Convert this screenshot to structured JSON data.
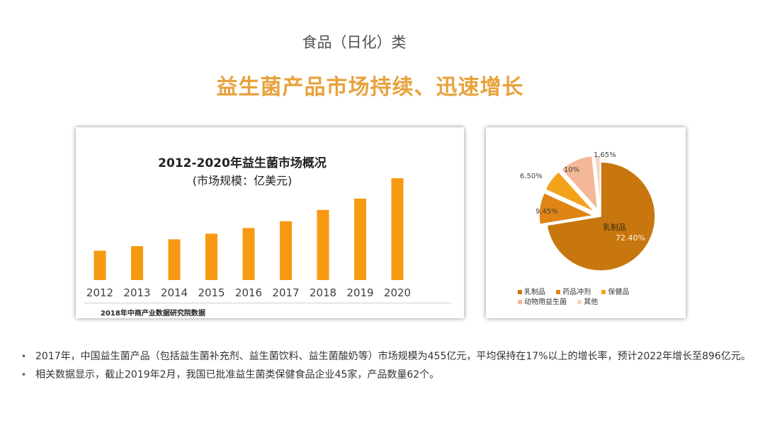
{
  "header": {
    "category": "食品（日化）类",
    "headline": "益生菌产品市场持续、迅速增长"
  },
  "colors": {
    "accent": "#E8A23C",
    "bar": "#F79A12",
    "pie": [
      "#C8770F",
      "#DE8513",
      "#F4A21C",
      "#F4B896",
      "#F3D5C4"
    ]
  },
  "chart_data": [
    {
      "type": "bar",
      "title": "2012-2020年益生菌市场概况",
      "subtitle": "(市场规模：亿美元)",
      "categories": [
        "2012",
        "2013",
        "2014",
        "2015",
        "2016",
        "2017",
        "2018",
        "2019",
        "2020"
      ],
      "values": [
        26,
        30,
        36,
        41,
        46,
        52,
        62,
        72,
        90
      ],
      "ylim": [
        0,
        100
      ],
      "xlabel": "",
      "ylabel": "",
      "source": "2018年中商产业数据研究院数据"
    },
    {
      "type": "pie",
      "slices": [
        {
          "label": "乳制品",
          "value": 72.4,
          "display": "72.40%"
        },
        {
          "label": "药品冲剂",
          "value": 9.45,
          "display": "9.45%"
        },
        {
          "label": "保健品",
          "value": 6.5,
          "display": "6.50%"
        },
        {
          "label": "动物用益生菌",
          "value": 10,
          "display": "10%"
        },
        {
          "label": "其他",
          "value": 1.65,
          "display": "1.65%"
        }
      ],
      "legend_position": "bottom"
    }
  ],
  "bullets": [
    "2017年，中国益生菌产品（包括益生菌补充剂、益生菌饮料、益生菌酸奶等）市场规模为455亿元，平均保持在17%以上的增长率，预计2022年增长至896亿元。",
    "相关数据显示，截止2019年2月，我国已批准益生菌类保健食品企业45家，产品数量62个。"
  ]
}
